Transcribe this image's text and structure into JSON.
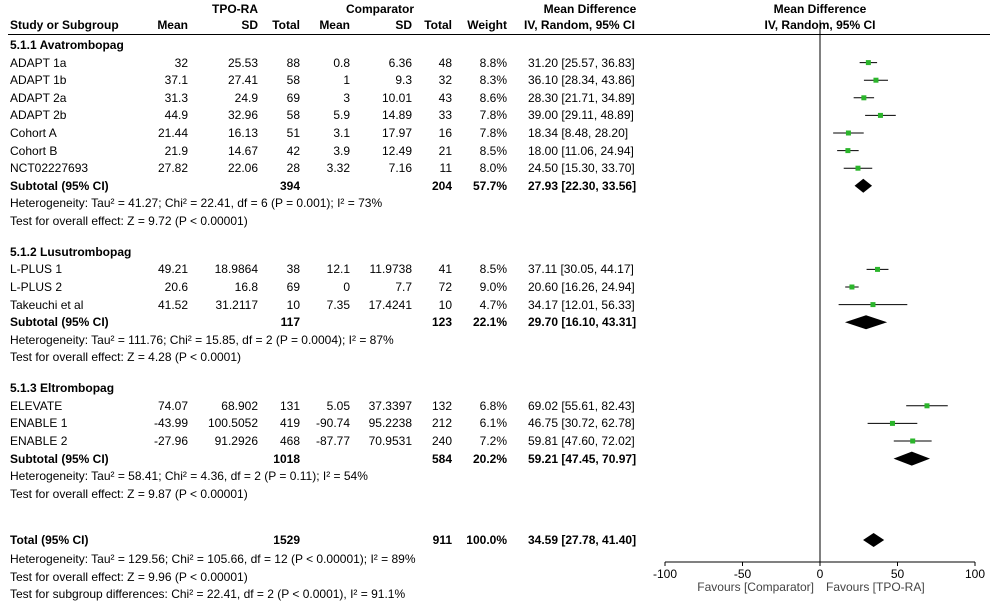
{
  "headers": {
    "group_tpo": "TPO-RA",
    "group_comp": "Comparator",
    "study": "Study or Subgroup",
    "mean": "Mean",
    "sd": "SD",
    "total": "Total",
    "mean2": "Mean",
    "sd2": "SD",
    "total2": "Total",
    "weight": "Weight",
    "md_title": "Mean Difference",
    "md_sub": "IV, Random, 95% CI",
    "plot_title": "Mean Difference",
    "plot_sub": "IV, Random, 95% CI"
  },
  "groups": [
    {
      "title": "5.1.1 Avatrombopag",
      "studies": [
        {
          "name": "ADAPT 1a",
          "m1": "32",
          "sd1": "25.53",
          "n1": "88",
          "m2": "0.8",
          "sd2": "6.36",
          "n2": "48",
          "w": "8.8%",
          "ci": "31.20 [25.57, 36.83]"
        },
        {
          "name": "ADAPT 1b",
          "m1": "37.1",
          "sd1": "27.41",
          "n1": "58",
          "m2": "1",
          "sd2": "9.3",
          "n2": "32",
          "w": "8.3%",
          "ci": "36.10 [28.34, 43.86]"
        },
        {
          "name": "ADAPT 2a",
          "m1": "31.3",
          "sd1": "24.9",
          "n1": "69",
          "m2": "3",
          "sd2": "10.01",
          "n2": "43",
          "w": "8.6%",
          "ci": "28.30 [21.71, 34.89]"
        },
        {
          "name": "ADAPT 2b",
          "m1": "44.9",
          "sd1": "32.96",
          "n1": "58",
          "m2": "5.9",
          "sd2": "14.89",
          "n2": "33",
          "w": "7.8%",
          "ci": "39.00 [29.11, 48.89]"
        },
        {
          "name": "Cohort A",
          "m1": "21.44",
          "sd1": "16.13",
          "n1": "51",
          "m2": "3.1",
          "sd2": "17.97",
          "n2": "16",
          "w": "7.8%",
          "ci": "18.34 [8.48, 28.20]"
        },
        {
          "name": "Cohort B",
          "m1": "21.9",
          "sd1": "14.67",
          "n1": "42",
          "m2": "3.9",
          "sd2": "12.49",
          "n2": "21",
          "w": "8.5%",
          "ci": "18.00 [11.06, 24.94]"
        },
        {
          "name": "NCT02227693",
          "m1": "27.82",
          "sd1": "22.06",
          "n1": "28",
          "m2": "3.32",
          "sd2": "7.16",
          "n2": "11",
          "w": "8.0%",
          "ci": "24.50 [15.30, 33.70]"
        }
      ],
      "subtotal": {
        "label": "Subtotal (95% CI)",
        "n1": "394",
        "n2": "204",
        "w": "57.7%",
        "ci": "27.93 [22.30, 33.56]"
      },
      "heterogeneity": "Heterogeneity: Tau² = 41.27; Chi² = 22.41, df = 6 (P = 0.001); I² = 73%",
      "overall": "Test for overall effect: Z = 9.72 (P < 0.00001)"
    },
    {
      "title": "5.1.2 Lusutrombopag",
      "studies": [
        {
          "name": "L-PLUS 1",
          "m1": "49.21",
          "sd1": "18.9864",
          "n1": "38",
          "m2": "12.1",
          "sd2": "11.9738",
          "n2": "41",
          "w": "8.5%",
          "ci": "37.11 [30.05, 44.17]"
        },
        {
          "name": "L-PLUS 2",
          "m1": "20.6",
          "sd1": "16.8",
          "n1": "69",
          "m2": "0",
          "sd2": "7.7",
          "n2": "72",
          "w": "9.0%",
          "ci": "20.60 [16.26, 24.94]"
        },
        {
          "name": "Takeuchi et al",
          "m1": "41.52",
          "sd1": "31.2117",
          "n1": "10",
          "m2": "7.35",
          "sd2": "17.4241",
          "n2": "10",
          "w": "4.7%",
          "ci": "34.17 [12.01, 56.33]"
        }
      ],
      "subtotal": {
        "label": "Subtotal (95% CI)",
        "n1": "117",
        "n2": "123",
        "w": "22.1%",
        "ci": "29.70 [16.10, 43.31]"
      },
      "heterogeneity": "Heterogeneity: Tau² = 111.76; Chi² = 15.85, df = 2 (P = 0.0004); I² = 87%",
      "overall": "Test for overall effect: Z = 4.28 (P < 0.0001)"
    },
    {
      "title": "5.1.3 Eltrombopag",
      "studies": [
        {
          "name": "ELEVATE",
          "m1": "74.07",
          "sd1": "68.902",
          "n1": "131",
          "m2": "5.05",
          "sd2": "37.3397",
          "n2": "132",
          "w": "6.8%",
          "ci": "69.02 [55.61, 82.43]"
        },
        {
          "name": "ENABLE 1",
          "m1": "-43.99",
          "sd1": "100.5052",
          "n1": "419",
          "m2": "-90.74",
          "sd2": "95.2238",
          "n2": "212",
          "w": "6.1%",
          "ci": "46.75 [30.72, 62.78]"
        },
        {
          "name": "ENABLE 2",
          "m1": "-27.96",
          "sd1": "91.2926",
          "n1": "468",
          "m2": "-87.77",
          "sd2": "70.9531",
          "n2": "240",
          "w": "7.2%",
          "ci": "59.81 [47.60, 72.02]"
        }
      ],
      "subtotal": {
        "label": "Subtotal (95% CI)",
        "n1": "1018",
        "n2": "584",
        "w": "20.2%",
        "ci": "59.21 [47.45, 70.97]"
      },
      "heterogeneity": "Heterogeneity: Tau² = 58.41; Chi² = 4.36, df = 2 (P = 0.11); I² = 54%",
      "overall": "Test for overall effect: Z = 9.87 (P < 0.00001)"
    }
  ],
  "total": {
    "label": "Total (95% CI)",
    "n1": "1529",
    "n2": "911",
    "w": "100.0%",
    "ci": "34.59 [27.78, 41.40]"
  },
  "footer": [
    "Heterogeneity: Tau² = 129.56; Chi² = 105.66, df = 12 (P < 0.00001); I² = 89%",
    "Test for overall effect: Z = 9.96 (P < 0.00001)",
    "Test for subgroup differences: Chi² = 22.41, df = 2 (P < 0.0001), I² = 91.1%"
  ],
  "axis": {
    "ticks": [
      -100,
      -50,
      0,
      50,
      100
    ],
    "tick_labels": [
      "-100",
      "-50",
      "0",
      "50",
      "100"
    ],
    "favours_left": "Favours [Comparator]",
    "favours_right": "Favours [TPO-RA]"
  },
  "colors": {
    "point": "#2bb52b",
    "diamond": "#000000"
  },
  "chart_data": {
    "type": "forest",
    "xlim": [
      -100,
      100
    ],
    "null_line": 0,
    "studies": [
      {
        "group": 0,
        "est": 31.2,
        "lo": 25.57,
        "hi": 36.83,
        "weight": 8.8
      },
      {
        "group": 0,
        "est": 36.1,
        "lo": 28.34,
        "hi": 43.86,
        "weight": 8.3
      },
      {
        "group": 0,
        "est": 28.3,
        "lo": 21.71,
        "hi": 34.89,
        "weight": 8.6
      },
      {
        "group": 0,
        "est": 39.0,
        "lo": 29.11,
        "hi": 48.89,
        "weight": 7.8
      },
      {
        "group": 0,
        "est": 18.34,
        "lo": 8.48,
        "hi": 28.2,
        "weight": 7.8
      },
      {
        "group": 0,
        "est": 18.0,
        "lo": 11.06,
        "hi": 24.94,
        "weight": 8.5
      },
      {
        "group": 0,
        "est": 24.5,
        "lo": 15.3,
        "hi": 33.7,
        "weight": 8.0
      },
      {
        "group": 1,
        "est": 37.11,
        "lo": 30.05,
        "hi": 44.17,
        "weight": 8.5
      },
      {
        "group": 1,
        "est": 20.6,
        "lo": 16.26,
        "hi": 24.94,
        "weight": 9.0
      },
      {
        "group": 1,
        "est": 34.17,
        "lo": 12.01,
        "hi": 56.33,
        "weight": 4.7
      },
      {
        "group": 2,
        "est": 69.02,
        "lo": 55.61,
        "hi": 82.43,
        "weight": 6.8
      },
      {
        "group": 2,
        "est": 46.75,
        "lo": 30.72,
        "hi": 62.78,
        "weight": 6.1
      },
      {
        "group": 2,
        "est": 59.81,
        "lo": 47.6,
        "hi": 72.02,
        "weight": 7.2
      }
    ],
    "subtotals": [
      {
        "est": 27.93,
        "lo": 22.3,
        "hi": 33.56
      },
      {
        "est": 29.7,
        "lo": 16.1,
        "hi": 43.31
      },
      {
        "est": 59.21,
        "lo": 47.45,
        "hi": 70.97
      }
    ],
    "overall": {
      "est": 34.59,
      "lo": 27.78,
      "hi": 41.4
    }
  }
}
